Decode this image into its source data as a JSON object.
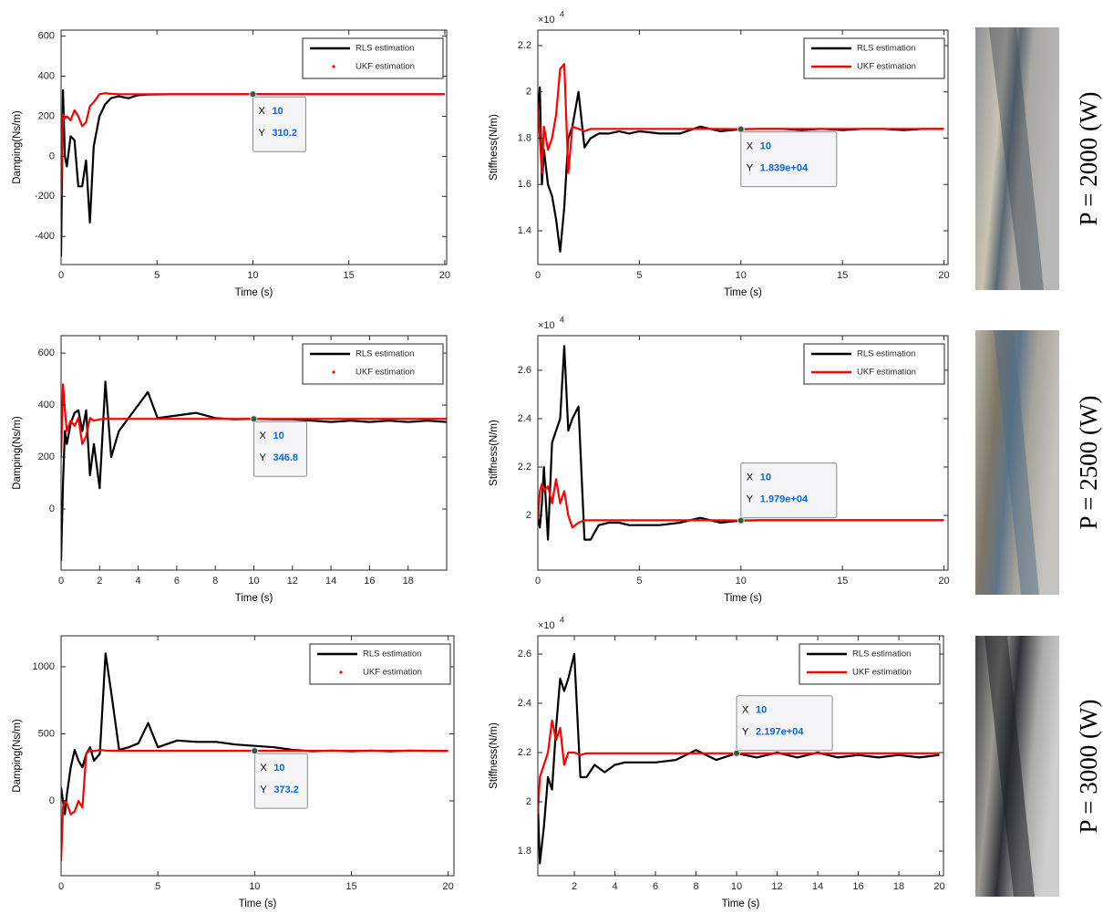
{
  "chart_data": [
    {
      "type": "line",
      "xlabel": "Time (s)",
      "ylabel": "Damping(Ns/m)",
      "xlim": [
        0,
        20.1
      ],
      "ylim": [
        -540,
        630
      ],
      "xticks": [
        0,
        5,
        10,
        15,
        20
      ],
      "yticks": [
        -400,
        -200,
        0,
        200,
        400,
        600
      ],
      "legend": "upper right",
      "x": [
        0,
        0.1,
        0.2,
        0.3,
        0.5,
        0.7,
        0.9,
        1.1,
        1.3,
        1.5,
        1.7,
        2,
        2.3,
        2.6,
        3,
        3.5,
        4,
        4.5,
        5,
        6,
        7,
        8,
        9,
        10,
        11,
        12,
        13,
        14,
        15,
        16,
        17,
        18,
        19,
        20
      ],
      "series": [
        {
          "name": "RLS estimation",
          "color": "#000000",
          "marker": "line",
          "values": [
            -500,
            330,
            0,
            -50,
            100,
            80,
            -150,
            -150,
            -20,
            -330,
            50,
            200,
            260,
            290,
            300,
            290,
            305,
            308,
            309,
            310,
            310,
            310,
            310,
            310.2,
            310,
            310,
            310,
            310,
            310,
            310,
            310,
            310,
            310,
            310
          ]
        },
        {
          "name": "UKF estimation",
          "color": "#ff0000",
          "marker": "dot",
          "values": [
            -200,
            210,
            190,
            200,
            180,
            230,
            200,
            150,
            170,
            250,
            270,
            310,
            315,
            312,
            310,
            310,
            310,
            310,
            310,
            310,
            310,
            310,
            310,
            310.2,
            310,
            310,
            310,
            310,
            310,
            310,
            310,
            310,
            310,
            310
          ]
        }
      ],
      "datatip": {
        "x_name": "X",
        "y_name": "Y",
        "x": 10,
        "y": 310.2
      }
    },
    {
      "type": "line",
      "xlabel": "Time (s)",
      "ylabel": "Stiffness(N/m)",
      "y_multiplier": "×10",
      "y_exponent": "4",
      "xlim": [
        0,
        20.2
      ],
      "ylim": [
        12540,
        22670
      ],
      "xticks": [
        0,
        5,
        10,
        15,
        20
      ],
      "yticks": [
        {
          "value": 14000,
          "label": "1.4"
        },
        {
          "value": 16000,
          "label": "1.6"
        },
        {
          "value": 18000,
          "label": "1.8"
        },
        {
          "value": 20000,
          "label": "2"
        },
        {
          "value": 22000,
          "label": "2.2"
        }
      ],
      "legend": "upper right",
      "x": [
        0,
        0.1,
        0.2,
        0.3,
        0.5,
        0.7,
        0.9,
        1.1,
        1.3,
        1.5,
        1.7,
        2,
        2.3,
        2.6,
        3,
        3.5,
        4,
        4.5,
        5,
        6,
        7,
        8,
        9,
        10,
        11,
        12,
        13,
        14,
        15,
        16,
        17,
        18,
        19,
        20
      ],
      "series": [
        {
          "name": "RLS estimation",
          "color": "#000000",
          "marker": "line",
          "values": [
            19000,
            20200,
            16000,
            17500,
            16000,
            15500,
            14500,
            13100,
            15000,
            18000,
            18500,
            20000,
            17600,
            18000,
            18200,
            18200,
            18300,
            18200,
            18300,
            18200,
            18200,
            18500,
            18300,
            18390,
            18400,
            18400,
            18350,
            18400,
            18350,
            18400,
            18400,
            18350,
            18400,
            18400
          ]
        },
        {
          "name": "UKF estimation",
          "color": "#ff0000",
          "marker": "line",
          "values": [
            19500,
            18000,
            16500,
            18500,
            17500,
            18000,
            19000,
            21000,
            21200,
            16500,
            18500,
            18400,
            18300,
            18400,
            18400,
            18400,
            18400,
            18400,
            18400,
            18400,
            18400,
            18400,
            18400,
            18390,
            18400,
            18400,
            18400,
            18400,
            18400,
            18400,
            18400,
            18400,
            18400,
            18400
          ]
        }
      ],
      "datatip": {
        "x_name": "X",
        "y_name": "Y",
        "x": 10,
        "y": {
          "value": 18390,
          "label": "1.839e+04"
        }
      }
    },
    {
      "type": "line",
      "xlabel": "Time (s)",
      "ylabel": "Damping(Ns/m)",
      "xlim": [
        0,
        20
      ],
      "ylim": [
        -235,
        667
      ],
      "xticks": [
        0,
        2,
        4,
        6,
        8,
        10,
        12,
        14,
        16,
        18
      ],
      "yticks": [
        0,
        200,
        400,
        600
      ],
      "legend": "upper right",
      "x": [
        0,
        0.1,
        0.2,
        0.3,
        0.5,
        0.7,
        0.9,
        1.1,
        1.3,
        1.5,
        1.7,
        2,
        2.3,
        2.6,
        3,
        3.5,
        4,
        4.5,
        5,
        6,
        7,
        8,
        9,
        10,
        11,
        12,
        13,
        14,
        15,
        16,
        17,
        18,
        19,
        20
      ],
      "series": [
        {
          "name": "RLS estimation",
          "color": "#000000",
          "marker": "line",
          "values": [
            -200,
            100,
            300,
            250,
            330,
            370,
            380,
            300,
            380,
            130,
            250,
            80,
            490,
            200,
            300,
            350,
            400,
            450,
            350,
            360,
            370,
            350,
            345,
            346.8,
            345,
            345,
            340,
            335,
            340,
            335,
            340,
            335,
            340,
            335
          ]
        },
        {
          "name": "UKF estimation",
          "color": "#ff0000",
          "marker": "dot",
          "values": [
            200,
            480,
            380,
            300,
            340,
            320,
            350,
            250,
            280,
            350,
            340,
            345,
            347,
            347,
            347,
            347,
            347,
            347,
            347,
            347,
            347,
            347,
            347,
            346.8,
            347,
            347,
            347,
            347,
            347,
            347,
            347,
            347,
            347,
            347
          ]
        }
      ],
      "datatip": {
        "x_name": "X",
        "y_name": "Y",
        "x": 10,
        "y": 346.8
      }
    },
    {
      "type": "line",
      "xlabel": "Time (s)",
      "ylabel": "Stiffness(N/m)",
      "y_multiplier": "×10",
      "y_exponent": "4",
      "xlim": [
        0,
        20.2
      ],
      "ylim": [
        17740,
        27430
      ],
      "xticks": [
        0,
        5,
        10,
        15,
        20
      ],
      "yticks": [
        {
          "value": 20000,
          "label": "2"
        },
        {
          "value": 22000,
          "label": "2.2"
        },
        {
          "value": 24000,
          "label": "2.4"
        },
        {
          "value": 26000,
          "label": "2.6"
        }
      ],
      "legend": "upper right",
      "x": [
        0,
        0.1,
        0.2,
        0.3,
        0.5,
        0.7,
        0.9,
        1.1,
        1.3,
        1.5,
        1.7,
        2,
        2.3,
        2.6,
        3,
        3.5,
        4,
        4.5,
        5,
        6,
        7,
        8,
        9,
        10,
        11,
        12,
        13,
        14,
        15,
        16,
        17,
        18,
        19,
        20
      ],
      "series": [
        {
          "name": "RLS estimation",
          "color": "#000000",
          "marker": "line",
          "values": [
            20000,
            19500,
            20500,
            22000,
            19000,
            23000,
            23500,
            24000,
            27000,
            23500,
            24000,
            24500,
            19000,
            19000,
            19600,
            19700,
            19700,
            19600,
            19600,
            19600,
            19700,
            19900,
            19700,
            19790,
            19800,
            19800,
            19800,
            19800,
            19800,
            19800,
            19800,
            19800,
            19800,
            19800
          ]
        },
        {
          "name": "UKF estimation",
          "color": "#ff0000",
          "marker": "line",
          "values": [
            19800,
            21000,
            21300,
            21000,
            21200,
            20500,
            21500,
            20500,
            21000,
            20000,
            19500,
            19700,
            19800,
            19800,
            19800,
            19800,
            19800,
            19800,
            19800,
            19800,
            19800,
            19800,
            19800,
            19790,
            19800,
            19800,
            19800,
            19800,
            19800,
            19800,
            19800,
            19800,
            19800,
            19800
          ]
        }
      ],
      "datatip": {
        "x_name": "X",
        "y_name": "Y",
        "x": 10,
        "y": {
          "value": 19790,
          "label": "1.979e+04"
        }
      }
    },
    {
      "type": "line",
      "xlabel": "Time (s)",
      "ylabel": "Damping(Ns/m)",
      "xlim": [
        0,
        20.3
      ],
      "ylim": [
        -558,
        1231
      ],
      "xticks": [
        0,
        5,
        10,
        15,
        20
      ],
      "yticks": [
        0,
        500,
        1000
      ],
      "legend": "upper right",
      "x": [
        0,
        0.1,
        0.2,
        0.3,
        0.5,
        0.7,
        0.9,
        1.1,
        1.3,
        1.5,
        1.7,
        2,
        2.3,
        2.6,
        3,
        3.5,
        4,
        4.5,
        5,
        6,
        7,
        8,
        9,
        10,
        11,
        12,
        13,
        14,
        15,
        16,
        17,
        18,
        19,
        20
      ],
      "series": [
        {
          "name": "RLS estimation",
          "color": "#000000",
          "marker": "line",
          "values": [
            100,
            0,
            -100,
            50,
            250,
            380,
            300,
            250,
            350,
            400,
            300,
            350,
            1100,
            800,
            380,
            400,
            430,
            580,
            400,
            450,
            440,
            440,
            420,
            410,
            400,
            380,
            370,
            375,
            370,
            375,
            370,
            375,
            373,
            373
          ]
        },
        {
          "name": "UKF estimation",
          "color": "#ff0000",
          "marker": "dot",
          "values": [
            -450,
            -50,
            0,
            -20,
            -100,
            -80,
            0,
            -50,
            350,
            380,
            370,
            380,
            375,
            373,
            373,
            373,
            373,
            373,
            373,
            373,
            373,
            373,
            373,
            373.2,
            373,
            373,
            373,
            373,
            373,
            373,
            373,
            373,
            373,
            373
          ]
        }
      ],
      "datatip": {
        "x_name": "X",
        "y_name": "Y",
        "x": 10,
        "y": 373.2
      }
    },
    {
      "type": "line",
      "xlabel": "Time (s)",
      "ylabel": "Stiffness(N/m)",
      "y_multiplier": "×10",
      "y_exponent": "4",
      "xlim": [
        0.2,
        20.2
      ],
      "ylim": [
        17000,
        26740
      ],
      "xticks": [
        2,
        4,
        6,
        8,
        10,
        12,
        14,
        16,
        18,
        20
      ],
      "yticks": [
        {
          "value": 18000,
          "label": "1.8"
        },
        {
          "value": 20000,
          "label": "2"
        },
        {
          "value": 22000,
          "label": "2.2"
        },
        {
          "value": 24000,
          "label": "2.4"
        },
        {
          "value": 26000,
          "label": "2.6"
        }
      ],
      "legend": "upper right",
      "x": [
        0.2,
        0.3,
        0.5,
        0.7,
        0.9,
        1.1,
        1.3,
        1.5,
        1.7,
        2,
        2.3,
        2.6,
        3,
        3.5,
        4,
        4.5,
        5,
        6,
        7,
        8,
        9,
        10,
        11,
        12,
        13,
        14,
        15,
        16,
        17,
        18,
        19,
        20
      ],
      "series": [
        {
          "name": "RLS estimation",
          "color": "#000000",
          "marker": "line",
          "values": [
            20000,
            17500,
            19000,
            21000,
            20500,
            23000,
            25000,
            24500,
            25000,
            26000,
            21000,
            21000,
            21500,
            21200,
            21500,
            21600,
            21600,
            21600,
            21700,
            22100,
            21700,
            21970,
            21800,
            22000,
            21800,
            22000,
            21800,
            21900,
            21800,
            21900,
            21800,
            21900
          ]
        },
        {
          "name": "UKF estimation",
          "color": "#ff0000",
          "marker": "line",
          "values": [
            19500,
            21000,
            21500,
            22000,
            23300,
            22500,
            23000,
            21500,
            22000,
            22000,
            21900,
            21970,
            21970,
            21970,
            21970,
            21970,
            21970,
            21970,
            21970,
            21970,
            21970,
            21970,
            21970,
            21970,
            21970,
            21970,
            21970,
            21970,
            21970,
            21970,
            21970,
            21970
          ]
        }
      ],
      "datatip": {
        "x_name": "X",
        "y_name": "Y",
        "x": 10,
        "y": {
          "value": 21970,
          "label": "2.197e+04"
        }
      }
    }
  ],
  "panels": [
    {
      "label": "P = 2000 (W)"
    },
    {
      "label": "P = 2500 (W)"
    },
    {
      "label": "P = 3000 (W)"
    }
  ]
}
